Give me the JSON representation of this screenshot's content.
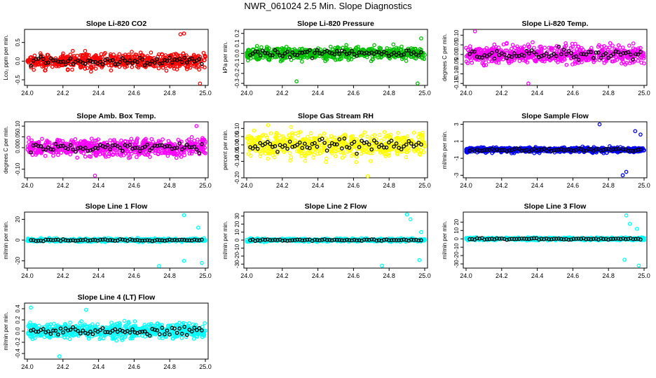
{
  "page": {
    "title": "NWR_061024  2.5 Min. Slope Diagnostics"
  },
  "chart_data": [
    {
      "type": "scatter",
      "title": "Slope Li-820 CO2",
      "ylabel": "Lco₂ ppm per min.",
      "xlim": [
        24.0,
        25.0
      ],
      "ylim": [
        -0.65,
        0.85
      ],
      "xticks": [
        24.0,
        24.2,
        24.4,
        24.6,
        24.8,
        25.0
      ],
      "yticks": [
        -0.5,
        0.0,
        0.5
      ],
      "color": "#ff0000",
      "noise": 0.2,
      "extremes": [
        [
          24.86,
          0.72
        ],
        [
          24.88,
          0.74
        ],
        [
          24.97,
          -0.6
        ]
      ],
      "series": [
        {
          "name": "",
          "color": "#ff0000",
          "values": "scatter spread ~ -0.4 to 0.4"
        },
        {
          "name": "",
          "color": "#000000",
          "values": "sparse ~ -0.2 to 0.25"
        }
      ]
    },
    {
      "type": "scatter",
      "title": "Slope Li-820 Pressure",
      "ylabel": "kPa per min.",
      "xlim": [
        24.0,
        25.0
      ],
      "ylim": [
        -0.32,
        0.24
      ],
      "xticks": [
        24.0,
        24.2,
        24.4,
        24.6,
        24.8,
        25.0
      ],
      "yticks": [
        -0.3,
        -0.2,
        -0.1,
        0.0,
        0.1,
        0.2
      ],
      "color": "#00c000",
      "noise": 0.06,
      "extremes": [
        [
          24.28,
          -0.28
        ],
        [
          24.96,
          -0.3
        ],
        [
          24.98,
          0.15
        ]
      ],
      "series": [
        {
          "name": "",
          "color": "#00c000",
          "values": "scatter spread ~ -0.15 to 0.15"
        },
        {
          "name": "",
          "color": "#000000",
          "values": "sparse ~ -0.05 to 0.05"
        }
      ]
    },
    {
      "type": "scatter",
      "title": "Slope Li-820 Temp.",
      "ylabel": "degrees C per min.",
      "xlim": [
        24.0,
        25.0
      ],
      "ylim": [
        -0.16,
        0.13
      ],
      "xticks": [
        24.0,
        24.2,
        24.4,
        24.6,
        24.8,
        25.0
      ],
      "yticks": [
        -0.15,
        -0.1,
        -0.05,
        0.0,
        0.05,
        0.1
      ],
      "color": "#ff00ff",
      "noise": 0.045,
      "extremes": [
        [
          24.05,
          0.12
        ],
        [
          24.35,
          -0.15
        ]
      ],
      "series": [
        {
          "name": "",
          "color": "#ff00ff",
          "values": "scatter spread ~ -0.1 to 0.1"
        },
        {
          "name": "",
          "color": "#000000",
          "values": "sparse ~ -0.05 to 0.05"
        }
      ]
    },
    {
      "type": "scatter",
      "title": "Slope Amb. Box Temp.",
      "ylabel": "degrees C per min.",
      "xlim": [
        24.0,
        25.0
      ],
      "ylim": [
        -0.14,
        0.12
      ],
      "xticks": [
        24.0,
        24.2,
        24.4,
        24.6,
        24.8,
        25.0
      ],
      "yticks": [
        -0.1,
        0.0,
        0.05,
        0.1
      ],
      "color": "#ff00ff",
      "noise": 0.04,
      "extremes": [
        [
          24.38,
          -0.13
        ],
        [
          24.95,
          0.1
        ]
      ],
      "series": [
        {
          "name": "",
          "color": "#ff00ff",
          "values": "scatter spread ~ -0.1 to 0.1"
        },
        {
          "name": "",
          "color": "#000000",
          "values": "sparse ~ -0.05 to 0.05"
        }
      ]
    },
    {
      "type": "scatter",
      "title": "Slope Gas Stream RH",
      "ylabel": "percent per min.",
      "xlim": [
        24.0,
        25.0
      ],
      "ylim": [
        -0.2,
        0.14
      ],
      "xticks": [
        24.0,
        24.2,
        24.4,
        24.6,
        24.8,
        25.0
      ],
      "yticks": [
        -0.2,
        -0.1,
        -0.05,
        0.0,
        0.05,
        0.1
      ],
      "color": "#ffff00",
      "noise": 0.07,
      "extremes": [
        [
          24.12,
          0.12
        ],
        [
          24.68,
          -0.19
        ]
      ],
      "series": [
        {
          "name": "",
          "color": "#ffff00",
          "values": "scatter spread ~ -0.15 to 0.12"
        },
        {
          "name": "",
          "color": "#000000",
          "values": "sparse ~ -0.1 to 0.1"
        }
      ]
    },
    {
      "type": "scatter",
      "title": "Slope Sample Flow",
      "ylabel": "ml/min per min.",
      "xlim": [
        24.0,
        25.0
      ],
      "ylim": [
        -3.3,
        3.3
      ],
      "xticks": [
        24.0,
        24.2,
        24.4,
        24.6,
        24.8,
        25.0
      ],
      "yticks": [
        -3,
        -1,
        1,
        3
      ],
      "color": "#0000ff",
      "noise": 0.3,
      "extremes": [
        [
          24.75,
          3.0
        ],
        [
          24.9,
          -2.6
        ],
        [
          24.88,
          -3.0
        ],
        [
          24.95,
          2.2
        ],
        [
          24.98,
          1.8
        ]
      ],
      "series": [
        {
          "name": "",
          "color": "#0000ff",
          "values": "tight band ~ -0.6 to 0.6, wider near 24.9"
        },
        {
          "name": "",
          "color": "#000000",
          "values": "near 0"
        }
      ]
    },
    {
      "type": "scatter",
      "title": "Slope Line 1 Flow",
      "ylabel": "ml/min per min.",
      "xlim": [
        24.0,
        25.0
      ],
      "ylim": [
        -27,
        27
      ],
      "xticks": [
        24.0,
        24.2,
        24.4,
        24.6,
        24.8,
        25.0
      ],
      "yticks": [
        -20,
        0,
        20
      ],
      "color": "#00ffff",
      "noise": 1.5,
      "extremes": [
        [
          24.88,
          24
        ],
        [
          24.98,
          -22
        ],
        [
          24.74,
          -25
        ],
        [
          24.88,
          -20
        ],
        [
          24.96,
          12
        ]
      ],
      "series": [
        {
          "name": "",
          "color": "#00ffff",
          "values": "band ~ -4 to 4 with spikes"
        },
        {
          "name": "",
          "color": "#000000",
          "values": "near 0"
        }
      ]
    },
    {
      "type": "scatter",
      "title": "Slope Line 2 Flow",
      "ylabel": "ml/min per min.",
      "xlim": [
        24.0,
        25.0
      ],
      "ylim": [
        -35,
        35
      ],
      "xticks": [
        24.0,
        24.2,
        24.4,
        24.6,
        24.8,
        25.0
      ],
      "yticks": [
        -30,
        -20,
        -10,
        0,
        10,
        20,
        30
      ],
      "color": "#00ffff",
      "noise": 1.8,
      "extremes": [
        [
          24.9,
          32
        ],
        [
          24.76,
          -32
        ],
        [
          24.97,
          -25
        ],
        [
          24.92,
          26
        ],
        [
          24.98,
          10
        ]
      ],
      "series": [
        {
          "name": "",
          "color": "#00ffff",
          "values": "band ~ -5 to 5 with spikes after 24.7"
        },
        {
          "name": "",
          "color": "#000000",
          "values": "near 0"
        }
      ]
    },
    {
      "type": "scatter",
      "title": "Slope Line 3 Flow",
      "ylabel": "ml/min per min.",
      "xlim": [
        24.0,
        25.0
      ],
      "ylim": [
        -35,
        32
      ],
      "xticks": [
        24.0,
        24.2,
        24.4,
        24.6,
        24.8,
        25.0
      ],
      "yticks": [
        -30,
        -20,
        -10,
        0,
        10,
        20
      ],
      "color": "#00ffff",
      "noise": 1.6,
      "extremes": [
        [
          24.9,
          28
        ],
        [
          24.89,
          -25
        ],
        [
          24.97,
          -32
        ],
        [
          24.96,
          12
        ],
        [
          24.92,
          18
        ]
      ],
      "series": [
        {
          "name": "",
          "color": "#00ffff",
          "values": "band ~ -4 to 4 with spikes after 24.85"
        },
        {
          "name": "",
          "color": "#000000",
          "values": "near 0"
        }
      ]
    },
    {
      "type": "scatter",
      "title": "Slope Line 4 (LT) Flow",
      "ylabel": "ml/min per min.",
      "xlim": [
        24.0,
        25.0
      ],
      "ylim": [
        -0.5,
        0.5
      ],
      "xticks": [
        24.0,
        24.2,
        24.4,
        24.6,
        24.8,
        25.0
      ],
      "yticks": [
        -0.4,
        -0.2,
        0.0,
        0.2,
        0.4
      ],
      "color": "#00ffff",
      "noise": 0.13,
      "extremes": [
        [
          24.18,
          -0.45
        ],
        [
          24.02,
          0.42
        ],
        [
          24.33,
          0.38
        ]
      ],
      "series": [
        {
          "name": "",
          "color": "#00ffff",
          "values": "scatter spread ~ -0.3 to 0.3"
        },
        {
          "name": "",
          "color": "#000000",
          "values": "sparse ~ -0.2 to 0.3"
        }
      ]
    }
  ]
}
